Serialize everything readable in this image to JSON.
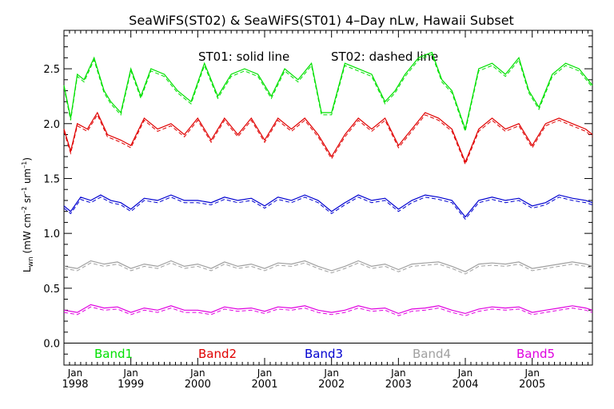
{
  "chart_data": {
    "type": "line",
    "title": "SeaWiFS(ST02) & SeaWiFS(ST01) 4–Day nLw, Hawaii Subset",
    "annotation_left": "ST01: solid line",
    "annotation_right": "ST02: dashed line",
    "ylabel_main": "L",
    "ylabel_sub": "wn",
    "ylabel_units": "(mW cm",
    "ylabel_units_exp1": "–2",
    "ylabel_units_mid": " sr",
    "ylabel_units_exp2": "–1",
    "ylabel_units_end": " um",
    "ylabel_units_exp3": "–1",
    "ylabel_units_close": ")",
    "ylim": [
      -0.2,
      2.85
    ],
    "xlim": [
      1998.0,
      2005.9
    ],
    "yticks": [
      "0.0",
      "0.5",
      "1.0",
      "1.5",
      "2.0",
      "2.5"
    ],
    "ytick_values": [
      0.0,
      0.5,
      1.0,
      1.5,
      2.0,
      2.5
    ],
    "xticks_month": [
      "Jan",
      "Jan",
      "Jan",
      "Jan",
      "Jan",
      "Jan",
      "Jan",
      "Jan"
    ],
    "xticks_year": [
      "1998",
      "1999",
      "2000",
      "2001",
      "2002",
      "2003",
      "2004",
      "2005"
    ],
    "xtick_values": [
      1998,
      1999,
      2000,
      2001,
      2002,
      2003,
      2004,
      2005
    ],
    "legend": {
      "placement": "bottom inside plot",
      "entries": [
        "Band1",
        "Band2",
        "Band3",
        "Band4",
        "Band5"
      ]
    },
    "series": [
      {
        "name": "Band1",
        "color": "#00e000",
        "x": [
          1998.0,
          1998.1,
          1998.2,
          1998.3,
          1998.45,
          1998.6,
          1998.7,
          1998.85,
          1999.0,
          1999.15,
          1999.3,
          1999.5,
          1999.7,
          1999.9,
          2000.1,
          2000.3,
          2000.5,
          2000.7,
          2000.9,
          2001.1,
          2001.3,
          2001.5,
          2001.7,
          2001.85,
          2002.0,
          2002.2,
          2002.4,
          2002.6,
          2002.8,
          2002.95,
          2003.1,
          2003.3,
          2003.5,
          2003.65,
          2003.8,
          2004.0,
          2004.2,
          2004.4,
          2004.6,
          2004.8,
          2004.95,
          2005.1,
          2005.3,
          2005.5,
          2005.7,
          2005.9
        ],
        "values": [
          2.35,
          2.05,
          2.45,
          2.4,
          2.6,
          2.3,
          2.2,
          2.1,
          2.5,
          2.25,
          2.5,
          2.45,
          2.3,
          2.2,
          2.55,
          2.25,
          2.45,
          2.5,
          2.45,
          2.25,
          2.5,
          2.4,
          2.55,
          2.1,
          2.1,
          2.55,
          2.5,
          2.45,
          2.2,
          2.3,
          2.45,
          2.6,
          2.65,
          2.4,
          2.3,
          1.95,
          2.5,
          2.55,
          2.45,
          2.6,
          2.3,
          2.15,
          2.45,
          2.55,
          2.5,
          2.35
        ]
      },
      {
        "name": "Band2",
        "color": "#e00000",
        "x": [
          1998.0,
          1998.1,
          1998.2,
          1998.35,
          1998.5,
          1998.65,
          1998.85,
          1999.0,
          1999.2,
          1999.4,
          1999.6,
          1999.8,
          2000.0,
          2000.2,
          2000.4,
          2000.6,
          2000.8,
          2001.0,
          2001.2,
          2001.4,
          2001.6,
          2001.8,
          2002.0,
          2002.2,
          2002.4,
          2002.6,
          2002.8,
          2003.0,
          2003.2,
          2003.4,
          2003.6,
          2003.8,
          2004.0,
          2004.2,
          2004.4,
          2004.6,
          2004.8,
          2005.0,
          2005.2,
          2005.4,
          2005.6,
          2005.8,
          2005.9
        ],
        "values": [
          1.95,
          1.75,
          2.0,
          1.95,
          2.1,
          1.9,
          1.85,
          1.8,
          2.05,
          1.95,
          2.0,
          1.9,
          2.05,
          1.85,
          2.05,
          1.9,
          2.05,
          1.85,
          2.05,
          1.95,
          2.05,
          1.9,
          1.7,
          1.9,
          2.05,
          1.95,
          2.05,
          1.8,
          1.95,
          2.1,
          2.05,
          1.95,
          1.65,
          1.95,
          2.05,
          1.95,
          2.0,
          1.8,
          2.0,
          2.05,
          2.0,
          1.95,
          1.9
        ]
      },
      {
        "name": "Band3",
        "color": "#0000d0",
        "x": [
          1998.0,
          1998.1,
          1998.25,
          1998.4,
          1998.55,
          1998.7,
          1998.85,
          1999.0,
          1999.2,
          1999.4,
          1999.6,
          1999.8,
          2000.0,
          2000.2,
          2000.4,
          2000.6,
          2000.8,
          2001.0,
          2001.2,
          2001.4,
          2001.6,
          2001.8,
          2002.0,
          2002.2,
          2002.4,
          2002.6,
          2002.8,
          2003.0,
          2003.2,
          2003.4,
          2003.6,
          2003.8,
          2004.0,
          2004.2,
          2004.4,
          2004.6,
          2004.8,
          2005.0,
          2005.2,
          2005.4,
          2005.6,
          2005.8,
          2005.9
        ],
        "values": [
          1.25,
          1.2,
          1.33,
          1.3,
          1.35,
          1.3,
          1.28,
          1.22,
          1.32,
          1.3,
          1.35,
          1.3,
          1.3,
          1.28,
          1.33,
          1.3,
          1.32,
          1.25,
          1.33,
          1.3,
          1.35,
          1.3,
          1.2,
          1.28,
          1.35,
          1.3,
          1.32,
          1.22,
          1.3,
          1.35,
          1.33,
          1.3,
          1.15,
          1.3,
          1.33,
          1.3,
          1.32,
          1.25,
          1.28,
          1.35,
          1.32,
          1.3,
          1.28
        ]
      },
      {
        "name": "Band4",
        "color": "#a0a0a0",
        "x": [
          1998.0,
          1998.2,
          1998.4,
          1998.6,
          1998.8,
          1999.0,
          1999.2,
          1999.4,
          1999.6,
          1999.8,
          2000.0,
          2000.2,
          2000.4,
          2000.6,
          2000.8,
          2001.0,
          2001.2,
          2001.4,
          2001.6,
          2001.8,
          2002.0,
          2002.2,
          2002.4,
          2002.6,
          2002.8,
          2003.0,
          2003.2,
          2003.4,
          2003.6,
          2003.8,
          2004.0,
          2004.2,
          2004.4,
          2004.6,
          2004.8,
          2005.0,
          2005.2,
          2005.4,
          2005.6,
          2005.8,
          2005.9
        ],
        "values": [
          0.7,
          0.68,
          0.75,
          0.72,
          0.74,
          0.68,
          0.72,
          0.7,
          0.75,
          0.7,
          0.72,
          0.68,
          0.74,
          0.7,
          0.72,
          0.68,
          0.73,
          0.72,
          0.75,
          0.7,
          0.66,
          0.7,
          0.75,
          0.7,
          0.72,
          0.67,
          0.72,
          0.73,
          0.74,
          0.7,
          0.65,
          0.72,
          0.73,
          0.72,
          0.74,
          0.68,
          0.7,
          0.72,
          0.74,
          0.72,
          0.7
        ]
      },
      {
        "name": "Band5",
        "color": "#e000e0",
        "x": [
          1998.0,
          1998.2,
          1998.4,
          1998.6,
          1998.8,
          1999.0,
          1999.2,
          1999.4,
          1999.6,
          1999.8,
          2000.0,
          2000.2,
          2000.4,
          2000.6,
          2000.8,
          2001.0,
          2001.2,
          2001.4,
          2001.6,
          2001.8,
          2002.0,
          2002.2,
          2002.4,
          2002.6,
          2002.8,
          2003.0,
          2003.2,
          2003.4,
          2003.6,
          2003.8,
          2004.0,
          2004.2,
          2004.4,
          2004.6,
          2004.8,
          2005.0,
          2005.2,
          2005.4,
          2005.6,
          2005.8,
          2005.9
        ],
        "values": [
          0.3,
          0.28,
          0.35,
          0.32,
          0.33,
          0.28,
          0.32,
          0.3,
          0.34,
          0.3,
          0.3,
          0.28,
          0.33,
          0.31,
          0.32,
          0.29,
          0.33,
          0.32,
          0.34,
          0.3,
          0.28,
          0.3,
          0.34,
          0.31,
          0.32,
          0.27,
          0.31,
          0.32,
          0.34,
          0.3,
          0.27,
          0.31,
          0.33,
          0.32,
          0.33,
          0.28,
          0.3,
          0.32,
          0.34,
          0.32,
          0.3
        ]
      }
    ]
  }
}
